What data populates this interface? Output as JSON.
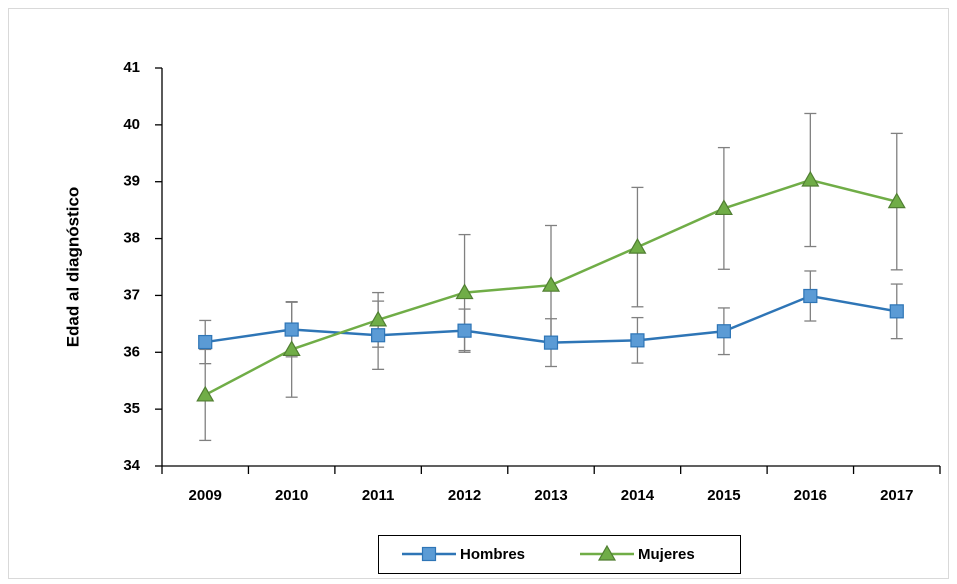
{
  "chart_data": {
    "type": "line",
    "y_label": "Edad al diagnóstico",
    "categories": [
      "2009",
      "2010",
      "2011",
      "2012",
      "2013",
      "2014",
      "2015",
      "2016",
      "2017"
    ],
    "series": [
      {
        "name": "Hombres",
        "color": "#2e75b6",
        "marker": "square",
        "marker_color": "#5b9bd5",
        "values": [
          36.18,
          36.4,
          36.3,
          36.38,
          36.17,
          36.21,
          36.37,
          36.99,
          36.72
        ],
        "errors": [
          0.38,
          0.48,
          0.6,
          0.38,
          0.42,
          0.4,
          0.41,
          0.44,
          0.48
        ]
      },
      {
        "name": "Mujeres",
        "color": "#70ad47",
        "marker": "triangle",
        "marker_color": "#70ad47",
        "values": [
          35.25,
          36.05,
          36.57,
          37.05,
          37.18,
          37.85,
          38.53,
          39.03,
          38.65
        ],
        "errors": [
          0.8,
          0.84,
          0.48,
          1.02,
          1.05,
          1.05,
          1.07,
          1.17,
          1.2
        ]
      }
    ],
    "error_bar_color": "#808080",
    "ylim": [
      34,
      41
    ],
    "yticks": [
      34,
      35,
      36,
      37,
      38,
      39,
      40,
      41
    ],
    "grid": false,
    "legend": "bottom"
  }
}
